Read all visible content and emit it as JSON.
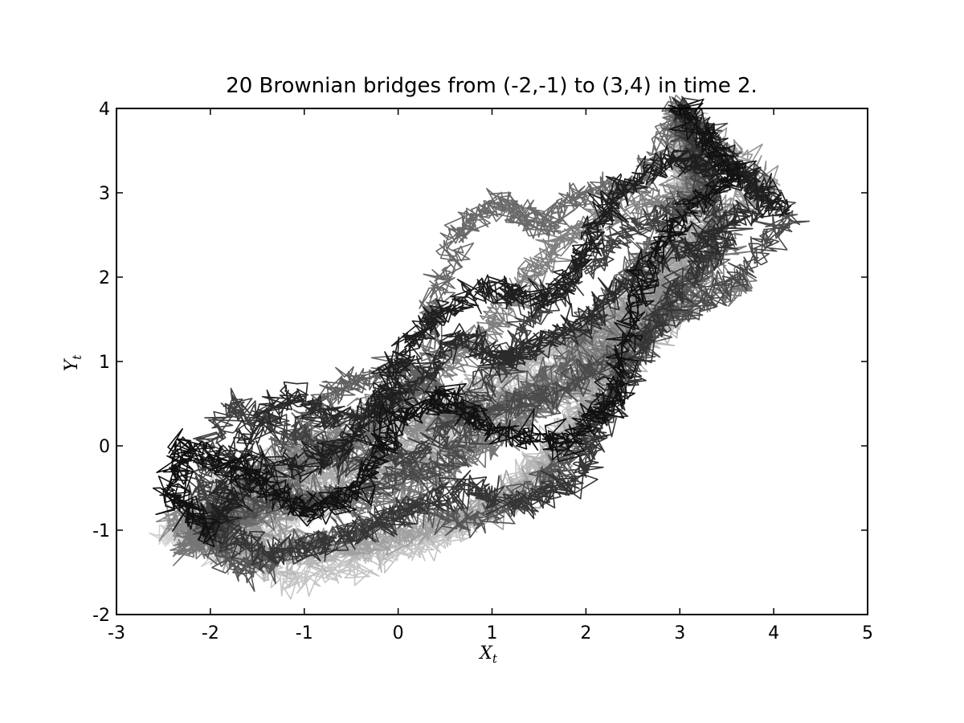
{
  "chart_data": {
    "type": "line",
    "title": "20 Brownian bridges from (-2,-1) to (3,4) in time 2.",
    "xlabel": "X",
    "xlabel_sub": "t",
    "ylabel": "Y",
    "ylabel_sub": "t",
    "xlim": [
      -3,
      5
    ],
    "ylim": [
      -2,
      4
    ],
    "xticks": [
      -3,
      -2,
      -1,
      0,
      1,
      2,
      3,
      4,
      5
    ],
    "yticks": [
      -2,
      -1,
      0,
      1,
      2,
      3,
      4
    ],
    "xtick_labels": [
      "-3",
      "-2",
      "-1",
      "0",
      "1",
      "2",
      "3",
      "4",
      "5"
    ],
    "ytick_labels": [
      "-2",
      "-1",
      "0",
      "1",
      "2",
      "3",
      "4"
    ],
    "grid": false,
    "legend": "none",
    "start": [
      -2,
      -1
    ],
    "end": [
      3,
      4
    ],
    "duration": 2,
    "series": [
      {
        "color": "#111111",
        "points": [
          [
            -2,
            -1
          ],
          [
            -2.4,
            -0.6
          ],
          [
            -2.3,
            0.0
          ],
          [
            -1.6,
            -0.3
          ],
          [
            -1.0,
            -0.8
          ],
          [
            -0.4,
            -0.5
          ],
          [
            0.0,
            0.3
          ],
          [
            0.5,
            0.6
          ],
          [
            1.0,
            0.2
          ],
          [
            1.8,
            0.0
          ],
          [
            2.3,
            0.6
          ],
          [
            2.5,
            1.6
          ],
          [
            2.9,
            2.6
          ],
          [
            3.6,
            3.2
          ],
          [
            3.0,
            4.0
          ]
        ]
      },
      {
        "color": "#1e1e1e",
        "points": [
          [
            -2,
            -1
          ],
          [
            -1.5,
            -0.3
          ],
          [
            -0.7,
            -0.1
          ],
          [
            -0.2,
            0.4
          ],
          [
            0.0,
            1.0
          ],
          [
            0.4,
            1.5
          ],
          [
            1.0,
            1.9
          ],
          [
            1.6,
            1.7
          ],
          [
            2.0,
            2.3
          ],
          [
            2.3,
            3.0
          ],
          [
            2.9,
            3.4
          ],
          [
            3.5,
            3.3
          ],
          [
            4.1,
            2.8
          ],
          [
            3.0,
            4.0
          ]
        ]
      },
      {
        "color": "#2a2a2a",
        "points": [
          [
            -2,
            -1
          ],
          [
            -1.8,
            -0.2
          ],
          [
            -1.2,
            0.6
          ],
          [
            -0.6,
            0.3
          ],
          [
            0.1,
            0.6
          ],
          [
            0.6,
            1.3
          ],
          [
            1.1,
            1.0
          ],
          [
            1.5,
            1.2
          ],
          [
            2.0,
            1.5
          ],
          [
            2.6,
            2.1
          ],
          [
            3.2,
            2.4
          ],
          [
            3.9,
            2.9
          ],
          [
            3.0,
            4.0
          ]
        ]
      },
      {
        "color": "#353535",
        "points": [
          [
            -2,
            -1
          ],
          [
            -1.3,
            -1.3
          ],
          [
            -0.6,
            -1.1
          ],
          [
            0.0,
            -0.8
          ],
          [
            0.7,
            -0.5
          ],
          [
            1.3,
            -0.7
          ],
          [
            1.9,
            -0.4
          ],
          [
            2.2,
            0.3
          ],
          [
            2.6,
            1.2
          ],
          [
            3.0,
            1.9
          ],
          [
            3.5,
            2.5
          ],
          [
            3.0,
            4.0
          ]
        ]
      },
      {
        "color": "#404040",
        "points": [
          [
            -2,
            -1
          ],
          [
            -2.1,
            -0.4
          ],
          [
            -1.8,
            0.5
          ],
          [
            -1.2,
            0.2
          ],
          [
            -0.5,
            -0.2
          ],
          [
            0.2,
            -0.1
          ],
          [
            0.9,
            0.6
          ],
          [
            1.4,
            1.5
          ],
          [
            1.9,
            2.0
          ],
          [
            2.5,
            2.6
          ],
          [
            3.3,
            3.0
          ],
          [
            3.0,
            4.0
          ]
        ]
      },
      {
        "color": "#4a4a4a",
        "points": [
          [
            -2,
            -1
          ],
          [
            -1.4,
            -0.6
          ],
          [
            -0.8,
            -0.7
          ],
          [
            -0.1,
            -0.4
          ],
          [
            0.5,
            -0.2
          ],
          [
            1.0,
            0.4
          ],
          [
            1.6,
            0.6
          ],
          [
            2.1,
            0.9
          ],
          [
            2.8,
            1.4
          ],
          [
            3.6,
            2.0
          ],
          [
            4.2,
            2.7
          ],
          [
            3.0,
            4.0
          ]
        ]
      },
      {
        "color": "#555555",
        "points": [
          [
            -2,
            -1
          ],
          [
            -1.7,
            -1.5
          ],
          [
            -1.1,
            -1.2
          ],
          [
            -0.4,
            -1.0
          ],
          [
            0.2,
            -0.7
          ],
          [
            0.8,
            -0.9
          ],
          [
            1.5,
            -0.5
          ],
          [
            2.0,
            0.1
          ],
          [
            2.4,
            0.9
          ],
          [
            2.9,
            1.7
          ],
          [
            3.4,
            2.3
          ],
          [
            3.0,
            4.0
          ]
        ]
      },
      {
        "color": "#606060",
        "points": [
          [
            -2,
            -1
          ],
          [
            -1.0,
            0.3
          ],
          [
            -0.5,
            0.8
          ],
          [
            0.1,
            0.9
          ],
          [
            0.6,
            0.3
          ],
          [
            1.2,
            0.5
          ],
          [
            1.8,
            1.0
          ],
          [
            2.2,
            1.7
          ],
          [
            2.7,
            2.4
          ],
          [
            3.2,
            3.1
          ],
          [
            3.0,
            4.0
          ]
        ]
      },
      {
        "color": "#6a6a6a",
        "points": [
          [
            -2,
            -1
          ],
          [
            -1.6,
            -0.8
          ],
          [
            -0.9,
            -0.2
          ],
          [
            -0.3,
            0.1
          ],
          [
            0.3,
            0.8
          ],
          [
            0.4,
            1.8
          ],
          [
            0.7,
            2.6
          ],
          [
            1.1,
            2.9
          ],
          [
            1.5,
            2.6
          ],
          [
            2.0,
            3.0
          ],
          [
            2.6,
            3.1
          ],
          [
            3.0,
            4.0
          ]
        ]
      },
      {
        "color": "#757575",
        "points": [
          [
            -2,
            -1
          ],
          [
            -2.3,
            -1.2
          ],
          [
            -1.7,
            -0.9
          ],
          [
            -1.0,
            -0.6
          ],
          [
            -0.3,
            -0.7
          ],
          [
            0.4,
            -0.4
          ],
          [
            1.1,
            0.1
          ],
          [
            1.6,
            0.5
          ],
          [
            2.2,
            1.1
          ],
          [
            2.9,
            1.6
          ],
          [
            3.7,
            1.9
          ],
          [
            3.0,
            4.0
          ]
        ]
      },
      {
        "color": "#808080",
        "points": [
          [
            -2,
            -1
          ],
          [
            -1.5,
            -0.4
          ],
          [
            -0.8,
            0.1
          ],
          [
            -0.2,
            0.5
          ],
          [
            0.5,
            0.9
          ],
          [
            1.0,
            1.4
          ],
          [
            1.4,
            2.0
          ],
          [
            1.8,
            2.5
          ],
          [
            2.4,
            2.8
          ],
          [
            3.1,
            3.0
          ],
          [
            3.0,
            4.0
          ]
        ]
      },
      {
        "color": "#8a8a8a",
        "points": [
          [
            -2,
            -1
          ],
          [
            -2.4,
            -0.9
          ],
          [
            -1.9,
            -0.6
          ],
          [
            -1.2,
            -0.3
          ],
          [
            -0.6,
            0.0
          ],
          [
            0.1,
            0.2
          ],
          [
            0.8,
            0.4
          ],
          [
            1.5,
            0.7
          ],
          [
            2.1,
            1.2
          ],
          [
            2.7,
            1.8
          ],
          [
            3.4,
            2.1
          ],
          [
            3.0,
            4.0
          ]
        ]
      },
      {
        "color": "#959595",
        "points": [
          [
            -2,
            -1
          ],
          [
            -1.3,
            -0.9
          ],
          [
            -0.6,
            -0.5
          ],
          [
            0.1,
            -0.3
          ],
          [
            0.7,
            0.0
          ],
          [
            1.3,
            0.3
          ],
          [
            1.9,
            0.8
          ],
          [
            2.4,
            1.4
          ],
          [
            2.8,
            2.2
          ],
          [
            3.4,
            2.7
          ],
          [
            4.0,
            3.1
          ],
          [
            3.0,
            4.0
          ]
        ]
      },
      {
        "color": "#a0a0a0",
        "points": [
          [
            -2,
            -1
          ],
          [
            -1.8,
            -1.3
          ],
          [
            -1.2,
            -1.1
          ],
          [
            -0.5,
            -1.2
          ],
          [
            0.2,
            -1.0
          ],
          [
            0.9,
            -0.8
          ],
          [
            1.6,
            -0.3
          ],
          [
            2.0,
            0.4
          ],
          [
            2.3,
            1.1
          ],
          [
            2.8,
            1.8
          ],
          [
            3.3,
            2.6
          ],
          [
            3.0,
            4.0
          ]
        ]
      },
      {
        "color": "#aaaaaa",
        "points": [
          [
            -2,
            -1
          ],
          [
            -1.6,
            -0.5
          ],
          [
            -1.0,
            -0.4
          ],
          [
            -0.3,
            -0.2
          ],
          [
            0.3,
            0.2
          ],
          [
            0.9,
            0.7
          ],
          [
            1.4,
            1.1
          ],
          [
            1.9,
            1.3
          ],
          [
            2.5,
            1.7
          ],
          [
            3.1,
            2.2
          ],
          [
            3.0,
            4.0
          ]
        ]
      },
      {
        "color": "#b5b5b5",
        "points": [
          [
            -2,
            -1
          ],
          [
            -1.4,
            -1.4
          ],
          [
            -0.7,
            -1.3
          ],
          [
            0.0,
            -1.1
          ],
          [
            0.6,
            -0.9
          ],
          [
            1.2,
            -0.6
          ],
          [
            1.7,
            0.0
          ],
          [
            2.1,
            0.7
          ],
          [
            2.6,
            1.2
          ],
          [
            3.2,
            1.7
          ],
          [
            3.0,
            4.0
          ]
        ]
      },
      {
        "color": "#bebebe",
        "points": [
          [
            -2,
            -1
          ],
          [
            -2.0,
            -0.5
          ],
          [
            -1.4,
            -0.2
          ],
          [
            -0.7,
            0.0
          ],
          [
            -0.1,
            0.3
          ],
          [
            0.5,
            0.4
          ],
          [
            1.1,
            0.8
          ],
          [
            1.7,
            1.2
          ],
          [
            2.3,
            1.5
          ],
          [
            2.9,
            2.0
          ],
          [
            3.0,
            4.0
          ]
        ]
      },
      {
        "color": "#c5c5c5",
        "points": [
          [
            -2,
            -1
          ],
          [
            -1.2,
            -1.6
          ],
          [
            -0.5,
            -1.4
          ],
          [
            0.2,
            -1.2
          ],
          [
            0.8,
            -0.9
          ],
          [
            1.3,
            -0.4
          ],
          [
            1.8,
            0.2
          ],
          [
            2.2,
            1.0
          ],
          [
            2.6,
            1.6
          ],
          [
            3.0,
            2.3
          ],
          [
            3.0,
            4.0
          ]
        ]
      },
      {
        "color": "#cccccc",
        "points": [
          [
            -2,
            -1
          ],
          [
            -1.7,
            -0.7
          ],
          [
            -1.1,
            -0.5
          ],
          [
            -0.4,
            -0.3
          ],
          [
            0.3,
            -0.1
          ],
          [
            0.9,
            0.3
          ],
          [
            1.5,
            0.8
          ],
          [
            2.0,
            1.3
          ],
          [
            2.5,
            1.9
          ],
          [
            3.1,
            2.5
          ],
          [
            3.0,
            4.0
          ]
        ]
      },
      {
        "color": "#d2d2d2",
        "points": [
          [
            -2,
            -1
          ],
          [
            -2.5,
            -1.0
          ],
          [
            -1.9,
            -1.3
          ],
          [
            -1.3,
            -1.0
          ],
          [
            -0.6,
            -0.6
          ],
          [
            0.0,
            -0.2
          ],
          [
            0.6,
            0.2
          ],
          [
            1.2,
            0.6
          ],
          [
            1.8,
            1.0
          ],
          [
            2.4,
            1.4
          ],
          [
            3.0,
            1.9
          ],
          [
            3.0,
            4.0
          ]
        ]
      }
    ]
  }
}
